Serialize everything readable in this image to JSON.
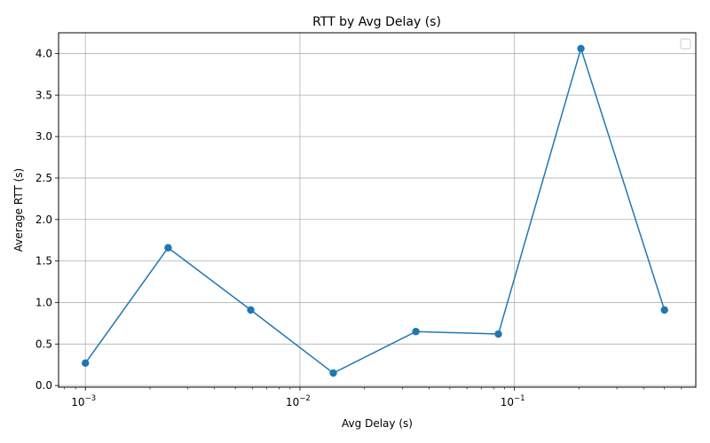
{
  "chart_data": {
    "type": "line",
    "title": "RTT by Avg Delay (s)",
    "xlabel": "Avg Delay (s)",
    "ylabel": "Average RTT (s)",
    "xscale": "log",
    "xlim": [
      0.00075,
      0.7
    ],
    "ylim": [
      -0.02,
      4.25
    ],
    "grid": true,
    "legend": "top-right",
    "legend_entries": [],
    "color": "#1f77b4",
    "x_ticks": [
      {
        "value": 0.001,
        "base": "10",
        "exp": "−3"
      },
      {
        "value": 0.01,
        "base": "10",
        "exp": "−2"
      },
      {
        "value": 0.1,
        "base": "10",
        "exp": "−1"
      }
    ],
    "y_ticks": [
      {
        "value": 0.0,
        "label": "0.0"
      },
      {
        "value": 0.5,
        "label": "0.5"
      },
      {
        "value": 1.0,
        "label": "1.0"
      },
      {
        "value": 1.5,
        "label": "1.5"
      },
      {
        "value": 2.0,
        "label": "2.0"
      },
      {
        "value": 2.5,
        "label": "2.5"
      },
      {
        "value": 3.0,
        "label": "3.0"
      },
      {
        "value": 3.5,
        "label": "3.5"
      },
      {
        "value": 4.0,
        "label": "4.0"
      }
    ],
    "series": [
      {
        "x": [
          0.001,
          0.00243,
          0.0059,
          0.0143,
          0.0347,
          0.0841,
          0.204,
          0.5
        ],
        "y": [
          0.27,
          1.66,
          0.91,
          0.15,
          0.65,
          0.62,
          4.06,
          0.91
        ]
      }
    ]
  }
}
